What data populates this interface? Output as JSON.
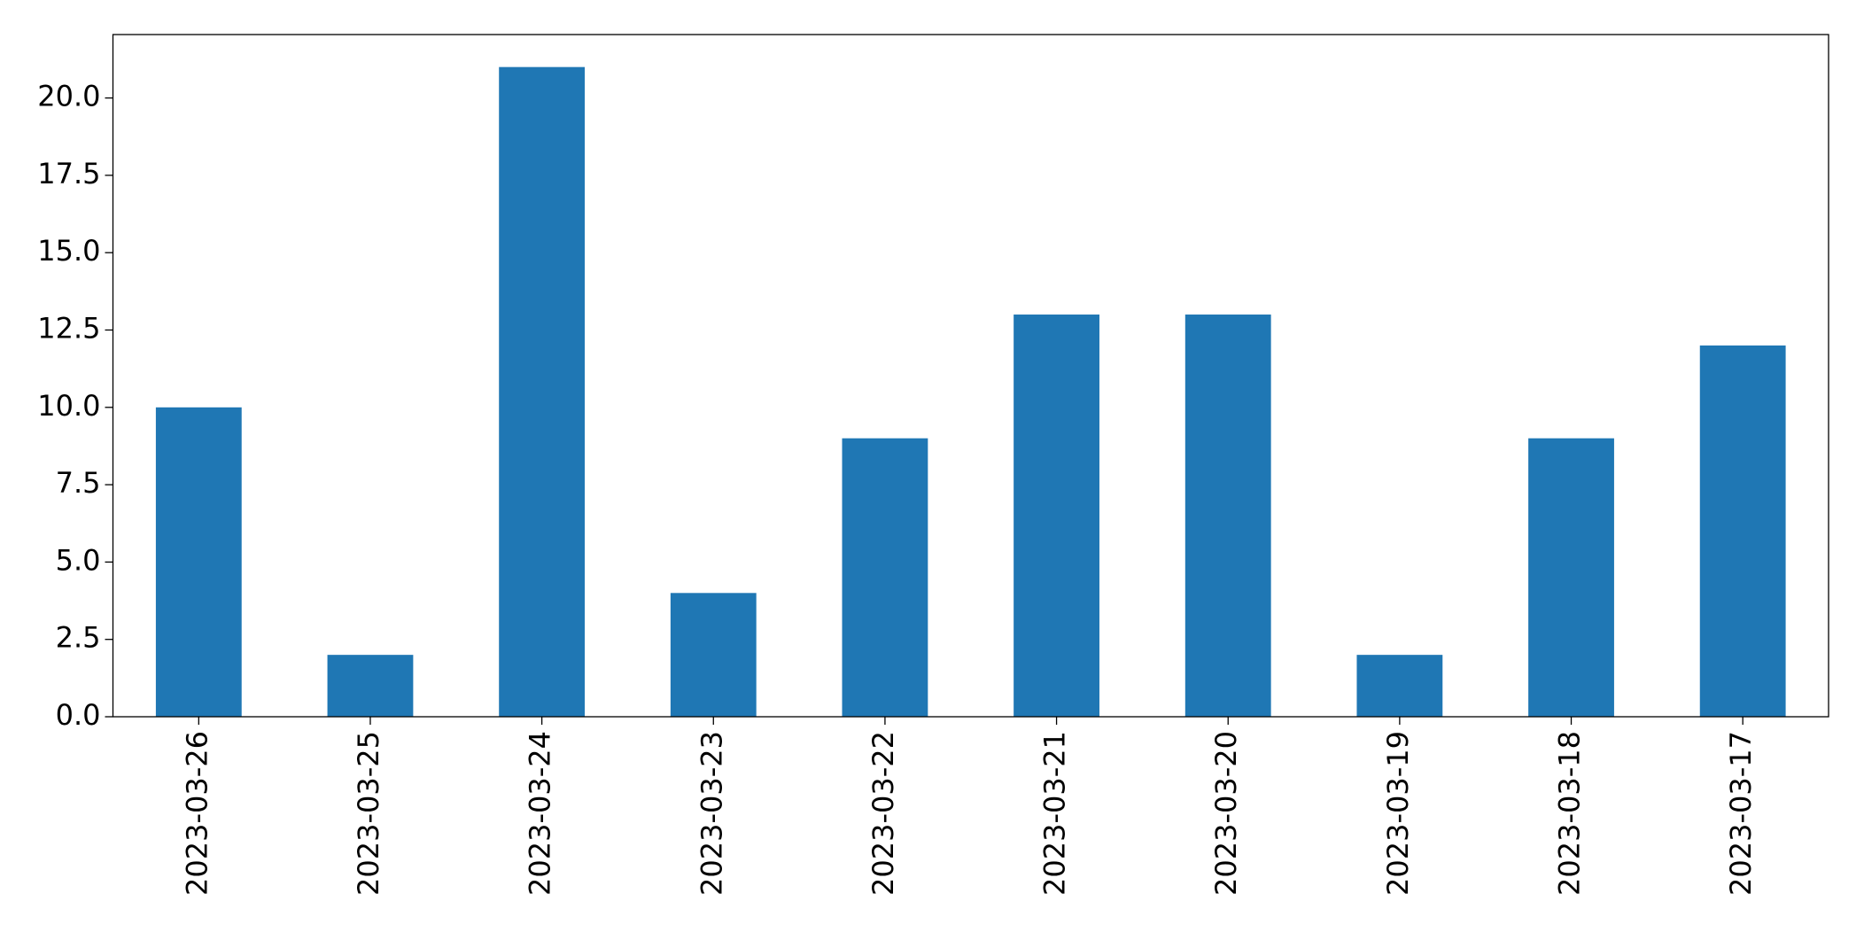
{
  "chart_data": {
    "type": "bar",
    "categories": [
      "2023-03-26",
      "2023-03-25",
      "2023-03-24",
      "2023-03-23",
      "2023-03-22",
      "2023-03-21",
      "2023-03-20",
      "2023-03-19",
      "2023-03-18",
      "2023-03-17"
    ],
    "values": [
      10,
      2,
      21,
      4,
      9,
      13,
      13,
      2,
      9,
      12
    ],
    "color": "#1f77b4",
    "ylim": [
      0,
      22.05
    ],
    "yticks": [
      {
        "value": 0,
        "label": "0.0"
      },
      2.5,
      {
        "value": 5,
        "label": "5.0"
      },
      7.5,
      {
        "value": 10,
        "label": "10.0"
      },
      12.5,
      {
        "value": 15,
        "label": "15.0"
      },
      17.5,
      {
        "value": 20,
        "label": "20.0"
      }
    ],
    "grid": false
  }
}
